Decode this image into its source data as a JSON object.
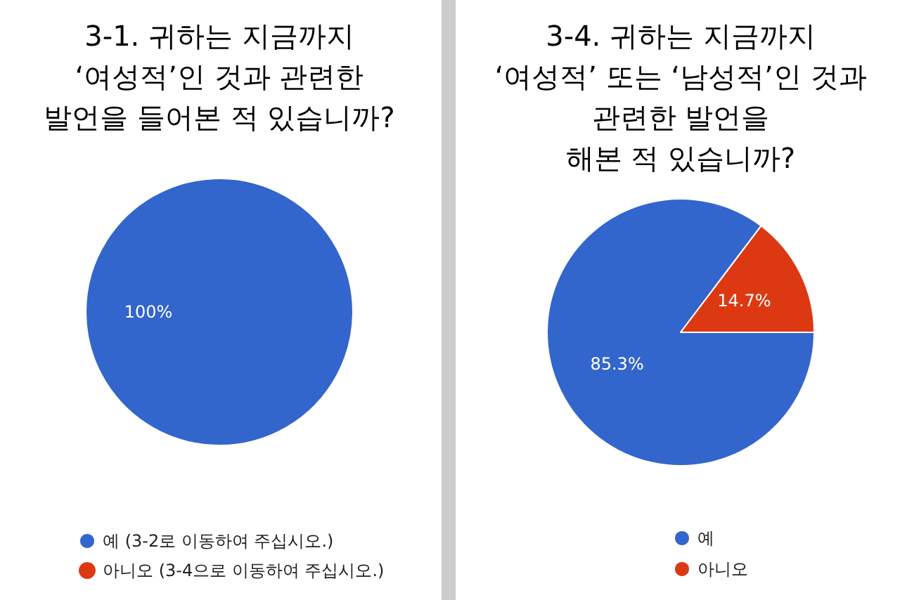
{
  "chart_data": [
    {
      "type": "pie",
      "title": "3-1. 귀하는 지금까지\n‘여성적’인 것과 관련한\n발언을 들어본 적 있습니까?",
      "categories": [
        "예 (3-2로 이동하여 주십시오.)",
        "아니오 (3-4으로 이동하여 주십시오.)"
      ],
      "values": [
        100,
        0
      ],
      "value_labels": [
        "100%",
        null
      ],
      "colors": [
        "#3366cc",
        "#dc3912"
      ],
      "legend": "bottom"
    },
    {
      "type": "pie",
      "title": "3-4. 귀하는 지금까지\n‘여성적’ 또는 ‘남성적’인 것과\n관련한 발언을\n해본 적 있습니까?",
      "categories": [
        "예",
        "아니오"
      ],
      "values": [
        85.3,
        14.7
      ],
      "value_labels": [
        "85.3%",
        "14.7%"
      ],
      "colors": [
        "#3366cc",
        "#dc3912"
      ],
      "legend": "bottom"
    }
  ]
}
